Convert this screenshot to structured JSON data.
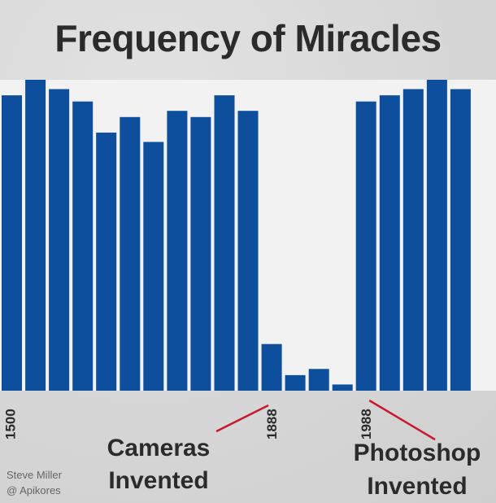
{
  "chart_data": {
    "type": "bar",
    "title": "Frequency of Miracles",
    "categories": [
      "1500",
      "",
      "",
      "",
      "",
      "",
      "",
      "",
      "",
      "",
      "",
      "1888",
      "",
      "",
      "",
      "1988",
      "",
      "",
      "",
      "",
      ""
    ],
    "values": [
      95,
      100,
      97,
      93,
      83,
      88,
      80,
      90,
      88,
      95,
      90,
      15,
      5,
      7,
      2,
      93,
      95,
      97,
      100,
      97,
      0
    ],
    "ylim": [
      0,
      100
    ],
    "xticks": [
      "1500",
      "1888",
      "1988"
    ],
    "annotations": [
      {
        "line1": "Cameras",
        "line2": "Invented"
      },
      {
        "line1": "Photoshop",
        "line2": "Invented"
      }
    ],
    "credit": {
      "line1": "Steve Miller",
      "line2": "@ Apikores"
    },
    "colors": {
      "bar": "#0d4f9c",
      "plot_bg": "#f2f2f2",
      "annotation_line": "#c8192e"
    },
    "grid": false,
    "legend": "none"
  }
}
